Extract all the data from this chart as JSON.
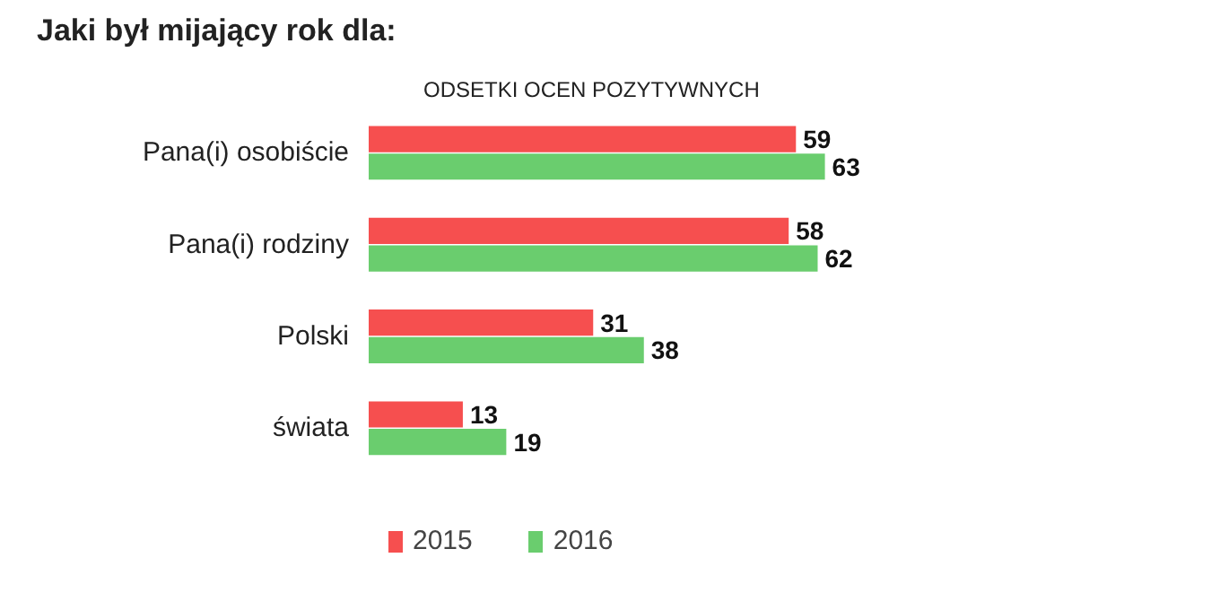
{
  "chart_data": {
    "type": "bar",
    "orientation": "horizontal",
    "title": "Jaki był mijający rok dla:",
    "subtitle": "ODSETKI OCEN POZYTYWNYCH",
    "categories": [
      "Pana(i) osobiście",
      "Pana(i) rodziny",
      "Polski",
      "świata"
    ],
    "series": [
      {
        "name": "2015",
        "color": "#f64f4f",
        "values": [
          59,
          58,
          31,
          13
        ]
      },
      {
        "name": "2016",
        "color": "#6acd6e",
        "values": [
          63,
          62,
          38,
          19
        ]
      }
    ],
    "data_labels": true,
    "legend": "bottom",
    "grid": false
  }
}
